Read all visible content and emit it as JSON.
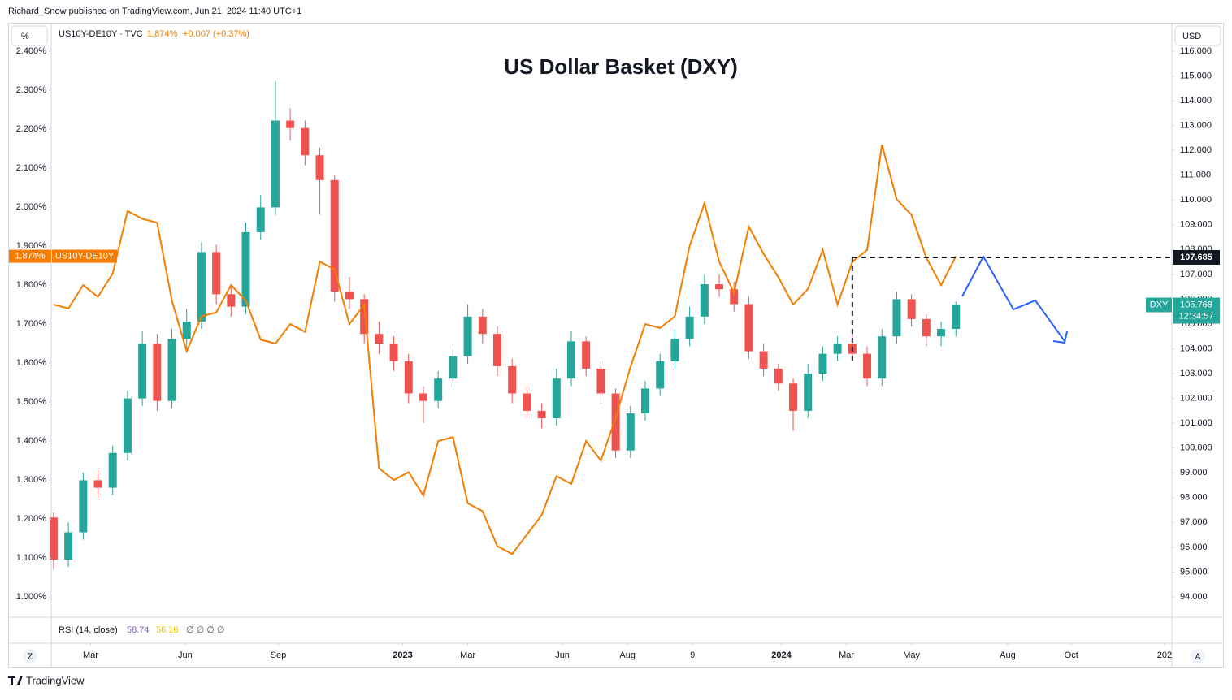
{
  "header": {
    "publisher": "Richard_Snow published on TradingView.com, Jun 21, 2024 11:40 UTC+1",
    "left_unit": "%",
    "right_unit": "USD",
    "footer": "TradingView",
    "zoom_button": "Z",
    "auto_button": "A"
  },
  "chart_data": {
    "type": "candlestick",
    "title": "US Dollar Basket (DXY)",
    "legend": {
      "label": "US10Y-DE10Y · TVC",
      "value": "1.874%",
      "change": "+0.007 (+0.37%)"
    },
    "candles": {
      "name": "DXY",
      "axis": "y2",
      "up_color": "#26a69a",
      "down_color": "#ef5350",
      "open": [
        97.2,
        95.5,
        96.6,
        98.7,
        98.4,
        99.8,
        102.0,
        104.2,
        101.9,
        104.4,
        105.1,
        107.9,
        106.2,
        105.7,
        108.7,
        109.7,
        113.2,
        112.9,
        111.8,
        110.8,
        106.3,
        106.0,
        104.6,
        104.2,
        103.5,
        102.2,
        101.9,
        102.8,
        103.7,
        105.3,
        104.6,
        103.3,
        102.2,
        101.5,
        101.2,
        102.8,
        104.3,
        103.2,
        102.2,
        99.9,
        101.4,
        102.4,
        103.5,
        104.4,
        105.3,
        106.6,
        106.4,
        105.8,
        103.9,
        103.2,
        102.6,
        101.5,
        103.0,
        103.8,
        104.2,
        103.8,
        102.8,
        104.5,
        106.0,
        105.2,
        104.5,
        104.8
      ],
      "high": [
        97.4,
        97.0,
        99.0,
        99.1,
        100.1,
        102.3,
        104.7,
        104.6,
        104.8,
        105.6,
        108.3,
        108.2,
        106.6,
        109.1,
        110.2,
        114.8,
        113.7,
        113.2,
        112.1,
        111.0,
        106.9,
        106.2,
        105.1,
        104.5,
        103.8,
        102.5,
        103.1,
        104.0,
        105.8,
        105.6,
        104.9,
        103.6,
        102.5,
        101.8,
        103.2,
        104.7,
        104.5,
        103.5,
        102.4,
        101.7,
        102.7,
        103.8,
        104.8,
        105.7,
        107.0,
        107.0,
        106.7,
        106.1,
        104.2,
        103.4,
        102.8,
        103.4,
        104.1,
        104.5,
        104.6,
        104.1,
        104.8,
        106.3,
        106.2,
        105.4,
        105.1,
        105.9
      ],
      "low": [
        95.1,
        95.2,
        96.3,
        98.0,
        98.1,
        99.5,
        101.7,
        101.5,
        101.6,
        104.0,
        104.8,
        105.8,
        105.3,
        105.4,
        108.4,
        109.4,
        112.4,
        111.4,
        109.4,
        105.9,
        105.6,
        104.2,
        103.8,
        103.1,
        101.8,
        101.0,
        101.6,
        102.5,
        103.4,
        104.2,
        102.9,
        101.8,
        101.2,
        100.8,
        100.9,
        102.5,
        102.9,
        101.8,
        99.6,
        99.6,
        101.1,
        102.1,
        103.2,
        104.1,
        105.0,
        106.1,
        105.5,
        103.6,
        102.9,
        102.3,
        100.7,
        101.2,
        102.7,
        103.5,
        103.5,
        102.5,
        102.5,
        104.2,
        104.9,
        104.1,
        104.1,
        104.5
      ],
      "close": [
        95.5,
        96.6,
        98.7,
        98.4,
        99.8,
        102.0,
        104.2,
        101.9,
        104.4,
        105.1,
        107.9,
        106.2,
        105.7,
        108.7,
        109.7,
        113.2,
        112.9,
        111.8,
        110.8,
        106.3,
        106.0,
        104.6,
        104.2,
        103.5,
        102.2,
        101.9,
        102.8,
        103.7,
        105.3,
        104.6,
        103.3,
        102.2,
        101.5,
        101.2,
        102.8,
        104.3,
        103.2,
        102.2,
        99.9,
        101.4,
        102.4,
        103.5,
        104.4,
        105.3,
        106.6,
        106.4,
        105.8,
        103.9,
        103.2,
        102.6,
        101.5,
        103.0,
        103.8,
        104.2,
        103.8,
        102.8,
        104.5,
        106.0,
        105.2,
        104.5,
        104.8,
        105.768
      ],
      "countdown": "12:34:57"
    },
    "series": [
      {
        "name": "US10Y-DE10Y",
        "color": "#f57c00",
        "values": [
          1.75,
          1.74,
          1.8,
          1.77,
          1.83,
          1.99,
          1.97,
          1.96,
          1.76,
          1.63,
          1.72,
          1.73,
          1.8,
          1.76,
          1.66,
          1.65,
          1.7,
          1.68,
          1.86,
          1.84,
          1.7,
          1.75,
          1.33,
          1.3,
          1.32,
          1.26,
          1.4,
          1.41,
          1.24,
          1.22,
          1.13,
          1.11,
          1.16,
          1.21,
          1.31,
          1.29,
          1.4,
          1.35,
          1.46,
          1.59,
          1.7,
          1.69,
          1.72,
          1.9,
          2.01,
          1.86,
          1.78,
          1.95,
          1.88,
          1.82,
          1.75,
          1.79,
          1.89,
          1.75,
          1.86,
          1.89,
          2.16,
          2.02,
          1.98,
          1.87,
          1.8,
          1.874
        ]
      }
    ],
    "level": 107.685,
    "rsi": {
      "label": "RSI (14, close)",
      "values": [
        58.74,
        56.16
      ],
      "colors": [
        "#7e57c2",
        "#f2c200"
      ],
      "extra": "∅ ∅ ∅ ∅"
    },
    "xlim": [
      -0.16,
      75.6
    ],
    "xticks": [
      {
        "value": 2.5,
        "label": "Mar"
      },
      {
        "value": 8.9,
        "label": "Jun"
      },
      {
        "value": 15.2,
        "label": "Sep"
      },
      {
        "value": 23.6,
        "label": "2023"
      },
      {
        "value": 28.0,
        "label": "Mar"
      },
      {
        "value": 34.4,
        "label": "Jun"
      },
      {
        "value": 38.8,
        "label": "Aug"
      },
      {
        "value": 43.2,
        "label": "9"
      },
      {
        "value": 49.2,
        "label": "2024"
      },
      {
        "value": 53.6,
        "label": "Mar"
      },
      {
        "value": 58.0,
        "label": "May"
      },
      {
        "value": 64.5,
        "label": "Aug"
      },
      {
        "value": 68.8,
        "label": "Oct"
      },
      {
        "value": 75.1,
        "label": "202"
      }
    ],
    "ylim": [
      0.948,
      2.469
    ],
    "yticks": [
      {
        "value": 1.0,
        "label": "1.000%"
      },
      {
        "value": 1.1,
        "label": "1.100%"
      },
      {
        "value": 1.2,
        "label": "1.200%"
      },
      {
        "value": 1.3,
        "label": "1.300%"
      },
      {
        "value": 1.4,
        "label": "1.400%"
      },
      {
        "value": 1.5,
        "label": "1.500%"
      },
      {
        "value": 1.6,
        "label": "1.600%"
      },
      {
        "value": 1.7,
        "label": "1.700%"
      },
      {
        "value": 1.8,
        "label": "1.800%"
      },
      {
        "value": 1.9,
        "label": "1.900%"
      },
      {
        "value": 2.0,
        "label": "2.000%"
      },
      {
        "value": 2.1,
        "label": "2.100%"
      },
      {
        "value": 2.2,
        "label": "2.200%"
      },
      {
        "value": 2.3,
        "label": "2.300%"
      },
      {
        "value": 2.4,
        "label": "2.400%"
      }
    ],
    "y2lim": [
      93.18,
      117.08
    ],
    "y2ticks": [
      {
        "value": 94,
        "label": "94.000"
      },
      {
        "value": 95,
        "label": "95.000"
      },
      {
        "value": 96,
        "label": "96.000"
      },
      {
        "value": 97,
        "label": "97.000"
      },
      {
        "value": 98,
        "label": "98.000"
      },
      {
        "value": 99,
        "label": "99.000"
      },
      {
        "value": 100,
        "label": "100.000"
      },
      {
        "value": 101,
        "label": "101.000"
      },
      {
        "value": 102,
        "label": "102.000"
      },
      {
        "value": 103,
        "label": "103.000"
      },
      {
        "value": 104,
        "label": "104.000"
      },
      {
        "value": 105,
        "label": "105.000"
      },
      {
        "value": 106,
        "label": "106.000"
      },
      {
        "value": 107,
        "label": "107.000"
      },
      {
        "value": 108,
        "label": "108.000"
      },
      {
        "value": 109,
        "label": "109.000"
      },
      {
        "value": 110,
        "label": "110.000"
      },
      {
        "value": 111,
        "label": "111.000"
      },
      {
        "value": 112,
        "label": "112.000"
      },
      {
        "value": 113,
        "label": "113.000"
      },
      {
        "value": 114,
        "label": "114.000"
      },
      {
        "value": 115,
        "label": "115.000"
      },
      {
        "value": 116,
        "label": "116.000"
      }
    ]
  }
}
